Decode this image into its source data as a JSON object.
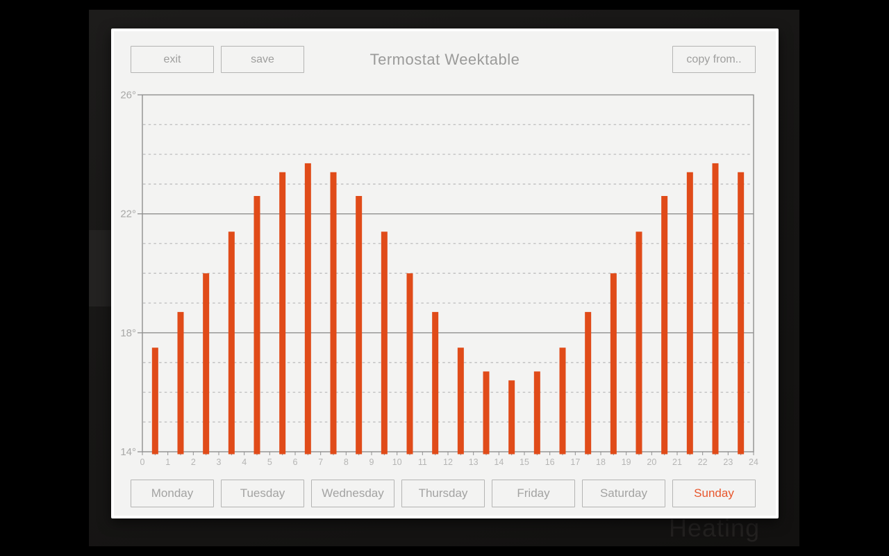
{
  "window": {
    "title": "Termostat Weektable"
  },
  "toolbar": {
    "exit_label": "exit",
    "save_label": "save",
    "copy_from_label": "copy from.."
  },
  "background": {
    "watermark": "Heating"
  },
  "days": [
    {
      "label": "Monday",
      "selected": false
    },
    {
      "label": "Tuesday",
      "selected": false
    },
    {
      "label": "Wednesday",
      "selected": false
    },
    {
      "label": "Thursday",
      "selected": false
    },
    {
      "label": "Friday",
      "selected": false
    },
    {
      "label": "Saturday",
      "selected": false
    },
    {
      "label": "Sunday",
      "selected": true
    }
  ],
  "colors": {
    "accent": "#e04b19",
    "selected_day_text": "#e8562c",
    "panel_bg": "#f3f3f2",
    "axis": "#8f8f8f",
    "grid_dashed": "#c1c1c1",
    "x_tick_label": "#b5b5b4",
    "y_axis_label": "#a8a8a7",
    "button_border": "#b4b4b3",
    "button_text": "#9e9e9d",
    "title_text": "#9a9a99"
  },
  "chart_data": {
    "type": "bar",
    "title": "Termostat Weektable",
    "xlabel": "",
    "ylabel": "",
    "x": [
      0,
      1,
      2,
      3,
      4,
      5,
      6,
      7,
      8,
      9,
      10,
      11,
      12,
      13,
      14,
      15,
      16,
      17,
      18,
      19,
      20,
      21,
      22,
      23
    ],
    "values": [
      17.5,
      18.7,
      20.0,
      21.4,
      22.6,
      23.4,
      23.7,
      23.4,
      22.6,
      21.4,
      20.0,
      18.7,
      17.5,
      16.7,
      16.4,
      16.7,
      17.5,
      18.7,
      20.0,
      21.4,
      22.6,
      23.4,
      23.7,
      23.4
    ],
    "xlim": [
      0,
      24
    ],
    "ylim": [
      14,
      26
    ],
    "x_tick_labels": [
      "0",
      "1",
      "2",
      "3",
      "4",
      "5",
      "6",
      "7",
      "8",
      "9",
      "10",
      "11",
      "12",
      "13",
      "14",
      "15",
      "16",
      "17",
      "18",
      "19",
      "20",
      "21",
      "22",
      "23",
      "24"
    ],
    "y_ticks": [
      {
        "value": 26,
        "label": "26°"
      },
      {
        "value": 22,
        "label": "22°"
      },
      {
        "value": 18,
        "label": "18°"
      },
      {
        "value": 14,
        "label": "14°"
      }
    ],
    "y_dashed_gridline_step": 1,
    "grid": "horizontal, dashed every degree, solid every 4 degrees",
    "legend": "none",
    "bar_color": "#e04b19"
  }
}
